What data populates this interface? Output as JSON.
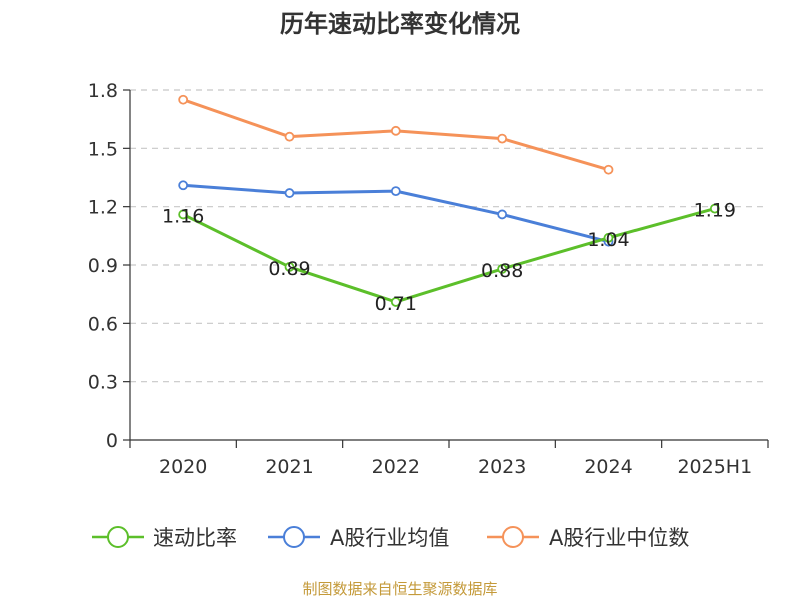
{
  "chart_data": {
    "type": "line",
    "title": "历年速动比率变化情况",
    "categories": [
      "2020",
      "2021",
      "2022",
      "2023",
      "2024",
      "2025H1"
    ],
    "ylim": [
      0,
      1.8
    ],
    "yticks": [
      "0",
      "0.3",
      "0.6",
      "0.9",
      "1.2",
      "1.5",
      "1.8"
    ],
    "grid": true,
    "legend_position": "bottom",
    "series": [
      {
        "name": "速动比率",
        "color": "#5cbf2a",
        "values": [
          1.16,
          0.89,
          0.71,
          0.88,
          1.04,
          1.19
        ],
        "labels": [
          "1.16",
          "0.89",
          "0.71",
          "0.88",
          "1.04",
          "1.19"
        ]
      },
      {
        "name": "A股行业均值",
        "color": "#4a7fd8",
        "values": [
          1.31,
          1.27,
          1.28,
          1.16,
          1.02,
          null
        ]
      },
      {
        "name": "A股行业中位数",
        "color": "#f59259",
        "values": [
          1.75,
          1.56,
          1.59,
          1.55,
          1.39,
          null
        ]
      }
    ]
  },
  "source": "制图数据来自恒生聚源数据库"
}
